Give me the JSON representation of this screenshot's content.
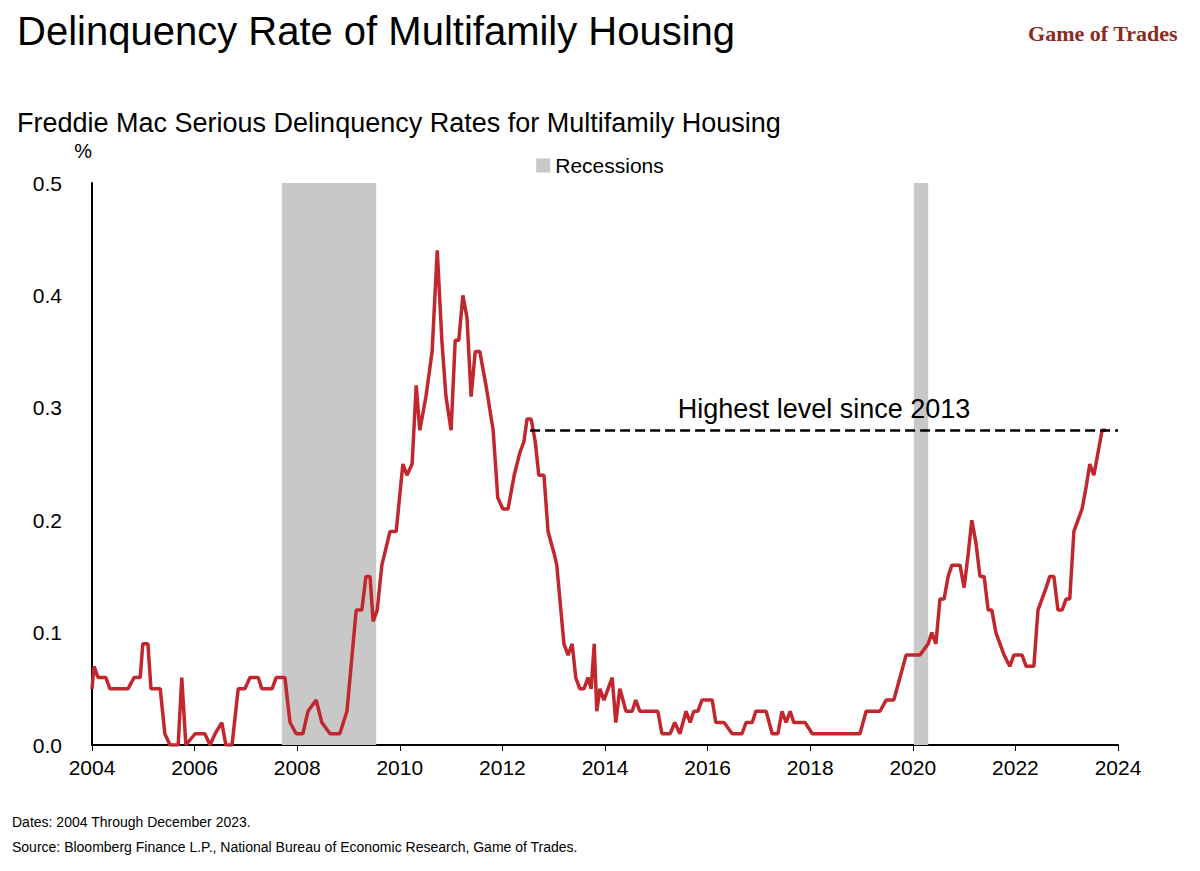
{
  "chart_data": {
    "type": "line",
    "title": "Delinquency Rate of Multifamily Housing",
    "subtitle": "Freddie Mac Serious Delinquency Rates for Multifamily Housing",
    "logo": "Game of Trades",
    "y_label": "%",
    "notes": [
      "Dates: 2004 Through December 2023.",
      "Source: Bloomberg Finance L.P., National Bureau of Economic Research, Game of Trades."
    ],
    "color": "#c1272d",
    "grid": false,
    "legend": "top",
    "xlim": [
      2004,
      2024
    ],
    "xticks": [
      2004,
      2006,
      2008,
      2010,
      2012,
      2014,
      2016,
      2018,
      2020,
      2022,
      2024
    ],
    "ylim": [
      0,
      0.5
    ],
    "yticks": [
      {
        "value": 0,
        "label": "0.0"
      },
      0.1,
      0.2,
      0.3,
      0.4,
      0.5
    ],
    "recessions": {
      "name": "Recessions",
      "color": "#c8c8c8",
      "ranges": [
        [
          2007.7,
          2009.54
        ],
        [
          2020.02,
          2020.3
        ]
      ]
    },
    "annotation": {
      "text": "Highest level since 2013",
      "x": [
        2012.54,
        2024
      ],
      "y": 0.28,
      "line_style": "dashed"
    },
    "x": [
      2004.0,
      2004.04,
      2004.12,
      2004.27,
      2004.35,
      2004.7,
      2004.82,
      2004.94,
      2004.99,
      2005.09,
      2005.15,
      2005.33,
      2005.42,
      2005.52,
      2005.68,
      2005.75,
      2005.83,
      2006.01,
      2006.2,
      2006.3,
      2006.4,
      2006.53,
      2006.61,
      2006.73,
      2006.85,
      2006.98,
      2007.08,
      2007.24,
      2007.31,
      2007.51,
      2007.59,
      2007.76,
      2007.86,
      2007.98,
      2008.11,
      2008.21,
      2008.37,
      2008.48,
      2008.64,
      2008.83,
      2008.97,
      2009.07,
      2009.15,
      2009.26,
      2009.34,
      2009.42,
      2009.48,
      2009.56,
      2009.65,
      2009.81,
      2009.93,
      2010.06,
      2010.14,
      2010.24,
      2010.32,
      2010.39,
      2010.51,
      2010.63,
      2010.73,
      2010.82,
      2010.9,
      2011.0,
      2011.08,
      2011.15,
      2011.23,
      2011.31,
      2011.39,
      2011.47,
      2011.56,
      2011.68,
      2011.82,
      2011.91,
      2012.01,
      2012.11,
      2012.23,
      2012.34,
      2012.42,
      2012.48,
      2012.56,
      2012.64,
      2012.71,
      2012.81,
      2012.89,
      2013.01,
      2013.06,
      2013.12,
      2013.2,
      2013.28,
      2013.36,
      2013.43,
      2013.51,
      2013.59,
      2013.67,
      2013.73,
      2013.79,
      2013.84,
      2013.9,
      2013.98,
      2014.06,
      2014.14,
      2014.21,
      2014.29,
      2014.41,
      2014.53,
      2014.6,
      2014.68,
      2015.03,
      2015.11,
      2015.27,
      2015.36,
      2015.46,
      2015.58,
      2015.66,
      2015.73,
      2015.81,
      2015.89,
      2016.09,
      2016.16,
      2016.32,
      2016.48,
      2016.67,
      2016.75,
      2016.87,
      2016.94,
      2017.14,
      2017.26,
      2017.37,
      2017.45,
      2017.53,
      2017.61,
      2017.68,
      2017.9,
      2018.04,
      2018.97,
      2019.09,
      2019.36,
      2019.48,
      2019.63,
      2019.75,
      2019.87,
      2020.14,
      2020.3,
      2020.37,
      2020.45,
      2020.53,
      2020.61,
      2020.69,
      2020.76,
      2020.92,
      2021.0,
      2021.08,
      2021.15,
      2021.23,
      2021.31,
      2021.39,
      2021.47,
      2021.54,
      2021.62,
      2021.78,
      2021.89,
      2021.97,
      2022.13,
      2022.21,
      2022.36,
      2022.44,
      2022.52,
      2022.6,
      2022.67,
      2022.75,
      2022.83,
      2022.91,
      2022.99,
      2023.06,
      2023.14,
      2023.22,
      2023.3,
      2023.38,
      2023.45,
      2023.53,
      2023.61,
      2023.69,
      2023.77
    ],
    "values": [
      0.05,
      0.07,
      0.06,
      0.06,
      0.05,
      0.05,
      0.06,
      0.06,
      0.09,
      0.09,
      0.05,
      0.05,
      0.01,
      0.0,
      0.0,
      0.06,
      0.0,
      0.01,
      0.01,
      0.0,
      0.01,
      0.02,
      0.0,
      0.0,
      0.05,
      0.05,
      0.06,
      0.06,
      0.05,
      0.05,
      0.06,
      0.06,
      0.02,
      0.01,
      0.01,
      0.03,
      0.04,
      0.02,
      0.01,
      0.01,
      0.03,
      0.08,
      0.12,
      0.12,
      0.15,
      0.15,
      0.11,
      0.12,
      0.16,
      0.19,
      0.19,
      0.25,
      0.24,
      0.25,
      0.32,
      0.28,
      0.31,
      0.35,
      0.44,
      0.36,
      0.31,
      0.28,
      0.36,
      0.36,
      0.4,
      0.38,
      0.31,
      0.35,
      0.35,
      0.32,
      0.28,
      0.22,
      0.21,
      0.21,
      0.24,
      0.26,
      0.27,
      0.29,
      0.29,
      0.27,
      0.24,
      0.24,
      0.19,
      0.17,
      0.16,
      0.13,
      0.09,
      0.08,
      0.09,
      0.06,
      0.05,
      0.05,
      0.06,
      0.05,
      0.09,
      0.03,
      0.05,
      0.04,
      0.05,
      0.06,
      0.02,
      0.05,
      0.03,
      0.03,
      0.04,
      0.03,
      0.03,
      0.01,
      0.01,
      0.02,
      0.01,
      0.03,
      0.02,
      0.03,
      0.03,
      0.04,
      0.04,
      0.02,
      0.02,
      0.01,
      0.01,
      0.02,
      0.02,
      0.03,
      0.03,
      0.01,
      0.01,
      0.03,
      0.02,
      0.03,
      0.02,
      0.02,
      0.01,
      0.01,
      0.03,
      0.03,
      0.04,
      0.04,
      0.06,
      0.08,
      0.08,
      0.09,
      0.1,
      0.09,
      0.13,
      0.13,
      0.15,
      0.16,
      0.16,
      0.14,
      0.17,
      0.2,
      0.18,
      0.15,
      0.15,
      0.12,
      0.12,
      0.1,
      0.08,
      0.07,
      0.08,
      0.08,
      0.07,
      0.07,
      0.12,
      0.13,
      0.14,
      0.15,
      0.15,
      0.12,
      0.12,
      0.13,
      0.13,
      0.19,
      0.2,
      0.21,
      0.23,
      0.25,
      0.24,
      0.26,
      0.28,
      0.28
    ]
  }
}
